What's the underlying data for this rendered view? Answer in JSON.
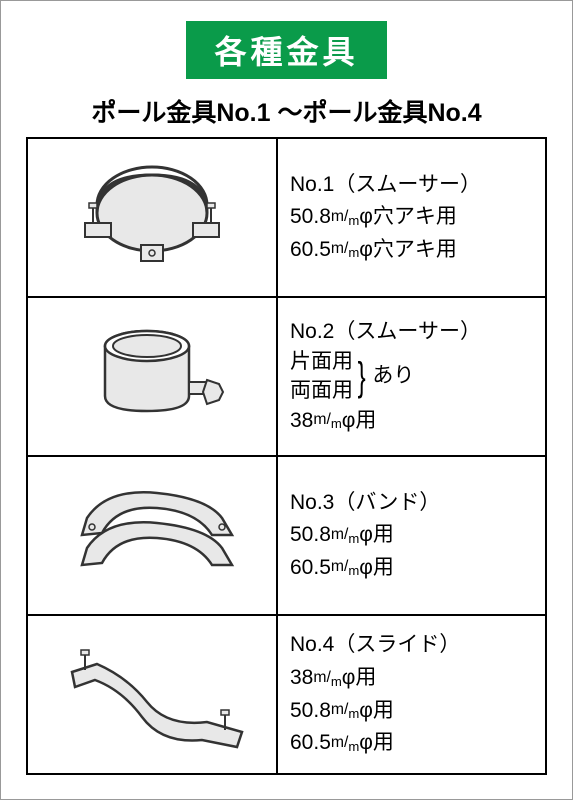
{
  "palette": {
    "header_bg": "#0a9b4a",
    "header_fg": "#ffffff",
    "border": "#000000",
    "text": "#000000",
    "fig_fill": "#e8e8e8",
    "fig_stroke": "#333333"
  },
  "header": {
    "title": "各種金具"
  },
  "subtitle": "ポール金具No.1 ～ポール金具No.4",
  "rows": [
    {
      "name": "No.1（スムーサー）",
      "lines": [
        "50.8㎜φ穴アキ用",
        "60.5㎜φ穴アキ用"
      ]
    },
    {
      "name": "No.2（スムーサー）",
      "grouped": {
        "items": [
          "片面用",
          "両面用"
        ],
        "suffix": "あり"
      },
      "lines": [
        "38㎜φ用"
      ]
    },
    {
      "name": "No.3（バンド）",
      "lines": [
        "50.8㎜φ用",
        "60.5㎜φ用"
      ]
    },
    {
      "name": "No.4（スライド）",
      "lines": [
        "38㎜φ用",
        "50.8㎜φ用",
        "60.5㎜φ用"
      ]
    }
  ]
}
